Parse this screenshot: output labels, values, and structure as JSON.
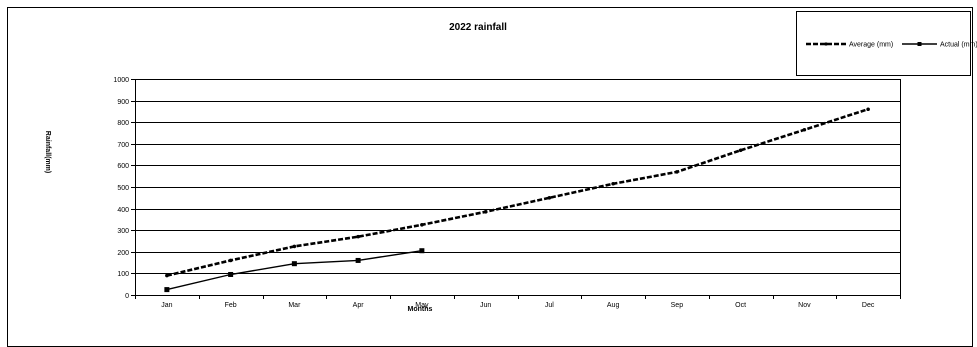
{
  "chart_data": {
    "type": "line",
    "title": "2022 rainfall",
    "xlabel": "Months",
    "ylabel": "Rainfall(mm)",
    "categories": [
      "Jan",
      "Feb",
      "Mar",
      "Apr",
      "May",
      "Jun",
      "Jul",
      "Aug",
      "Sep",
      "Oct",
      "Nov",
      "Dec"
    ],
    "ylim": [
      0,
      1000
    ],
    "yticks": [
      0,
      100,
      200,
      300,
      400,
      500,
      600,
      700,
      800,
      900,
      1000
    ],
    "grid": true,
    "legend_position": "top-right",
    "series": [
      {
        "name": "Average (mm)",
        "style": "dashed",
        "marker": "circle",
        "values": [
          90,
          160,
          225,
          270,
          325,
          385,
          450,
          515,
          570,
          670,
          765,
          860
        ]
      },
      {
        "name": "Actual (mm)",
        "style": "solid",
        "marker": "square",
        "values": [
          25,
          95,
          145,
          160,
          205,
          null,
          null,
          null,
          null,
          null,
          null,
          null
        ]
      }
    ]
  }
}
